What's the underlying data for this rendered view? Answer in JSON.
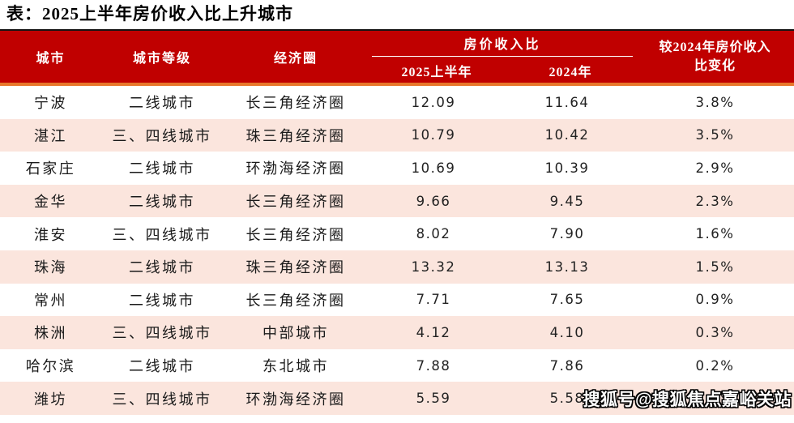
{
  "title": "表：2025上半年房价收入比上升城市",
  "watermark": "搜狐号@搜狐焦点嘉峪关站",
  "colors": {
    "header_background": "#C00000",
    "header_top_line": "#141414",
    "header_bottom_line": "#E8772B",
    "alt_row_background": "#FBE5DD",
    "header_text": "#FFFFFF",
    "body_text": "#1A1A1A"
  },
  "table": {
    "columns": {
      "city": "城市",
      "tier": "城市等级",
      "region": "经济圈"
    },
    "group_header": "房价收入比",
    "sub_columns": {
      "h1_2025": "2025上半年",
      "y2024": "2024年"
    },
    "change_header_line1": "较2024年房价收入",
    "change_header_line2": "比变化",
    "rows": [
      {
        "city": "宁波",
        "tier": "二线城市",
        "region": "长三角经济圈",
        "h1_2025": "12.09",
        "y2024": "11.64",
        "change": "3.8%"
      },
      {
        "city": "湛江",
        "tier": "三、四线城市",
        "region": "珠三角经济圈",
        "h1_2025": "10.79",
        "y2024": "10.42",
        "change": "3.5%"
      },
      {
        "city": "石家庄",
        "tier": "二线城市",
        "region": "环渤海经济圈",
        "h1_2025": "10.69",
        "y2024": "10.39",
        "change": "2.9%"
      },
      {
        "city": "金华",
        "tier": "二线城市",
        "region": "长三角经济圈",
        "h1_2025": "9.66",
        "y2024": "9.45",
        "change": "2.3%"
      },
      {
        "city": "淮安",
        "tier": "三、四线城市",
        "region": "长三角经济圈",
        "h1_2025": "8.02",
        "y2024": "7.90",
        "change": "1.6%"
      },
      {
        "city": "珠海",
        "tier": "二线城市",
        "region": "珠三角经济圈",
        "h1_2025": "13.32",
        "y2024": "13.13",
        "change": "1.5%"
      },
      {
        "city": "常州",
        "tier": "二线城市",
        "region": "长三角经济圈",
        "h1_2025": "7.71",
        "y2024": "7.65",
        "change": "0.9%"
      },
      {
        "city": "株洲",
        "tier": "三、四线城市",
        "region": "中部城市",
        "h1_2025": "4.12",
        "y2024": "4.10",
        "change": "0.3%"
      },
      {
        "city": "哈尔滨",
        "tier": "二线城市",
        "region": "东北城市",
        "h1_2025": "7.88",
        "y2024": "7.86",
        "change": "0.2%"
      },
      {
        "city": "潍坊",
        "tier": "三、四线城市",
        "region": "环渤海经济圈",
        "h1_2025": "5.59",
        "y2024": "5.58",
        "change": "0.2%"
      }
    ]
  }
}
